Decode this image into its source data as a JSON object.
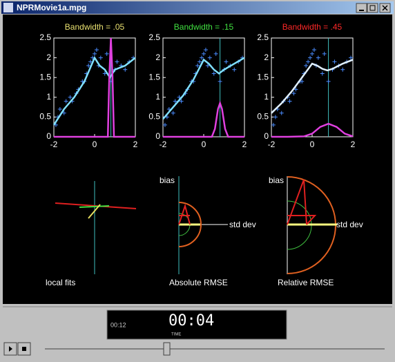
{
  "window": {
    "title": "NPRMovie1a.mpg"
  },
  "chart_data": [
    {
      "type": "scatter",
      "title": "Bandwidth = .05",
      "title_color": "#e8e070",
      "xlim": [
        -2,
        2
      ],
      "ylim": [
        0,
        2.5
      ],
      "xticks": [
        -2,
        0,
        2
      ],
      "yticks": [
        0,
        0.5,
        1,
        1.5,
        2,
        2.5
      ],
      "focus_x": 0.8,
      "points": {
        "color": "#4a8cff",
        "x": [
          -1.9,
          -1.8,
          -1.7,
          -1.5,
          -1.4,
          -1.2,
          -1.1,
          -0.9,
          -0.8,
          -0.6,
          -0.5,
          -0.4,
          -0.3,
          -0.2,
          -0.1,
          0,
          0.1,
          0.2,
          0.3,
          0.5,
          0.6,
          0.8,
          1,
          1.1,
          1.3,
          1.5,
          1.7,
          1.9
        ],
        "values": [
          0.3,
          0.5,
          0.7,
          0.6,
          0.9,
          1,
          0.9,
          1.1,
          1.2,
          1.4,
          1.4,
          1.6,
          1.8,
          1.9,
          2.0,
          2.1,
          2.2,
          1.8,
          2.0,
          1.6,
          2.1,
          1.4,
          1.7,
          1.9,
          1.8,
          1.7,
          1.9,
          2.0
        ]
      },
      "fit": {
        "color": "#80e0ff",
        "x": [
          -2,
          -1.5,
          -1,
          -0.5,
          0,
          0.25,
          0.5,
          0.75,
          1,
          1.5,
          2
        ],
        "values": [
          0.3,
          0.7,
          1.0,
          1.4,
          2.0,
          1.8,
          1.7,
          1.5,
          1.7,
          1.8,
          2.0
        ]
      },
      "kernel": {
        "color": "#e040e0",
        "x": [
          -2,
          0.65,
          0.72,
          0.8,
          0.88,
          0.95,
          2
        ],
        "values": [
          0,
          0,
          1.5,
          2.5,
          1.5,
          0,
          0
        ]
      }
    },
    {
      "type": "scatter",
      "title": "Bandwidth = .15",
      "title_color": "#40e040",
      "xlim": [
        -2,
        2
      ],
      "ylim": [
        0,
        2.5
      ],
      "xticks": [
        -2,
        0,
        2
      ],
      "yticks": [
        0,
        0.5,
        1,
        1.5,
        2,
        2.5
      ],
      "focus_x": 0.8,
      "points": {
        "color": "#4a8cff",
        "x": [
          -1.9,
          -1.8,
          -1.7,
          -1.5,
          -1.4,
          -1.2,
          -1.1,
          -0.9,
          -0.8,
          -0.6,
          -0.5,
          -0.4,
          -0.3,
          -0.2,
          -0.1,
          0,
          0.1,
          0.2,
          0.3,
          0.5,
          0.6,
          0.8,
          1,
          1.1,
          1.3,
          1.5,
          1.7,
          1.9
        ],
        "values": [
          0.3,
          0.5,
          0.7,
          0.6,
          0.9,
          1,
          0.9,
          1.1,
          1.2,
          1.4,
          1.4,
          1.6,
          1.8,
          1.9,
          2.0,
          2.1,
          2.2,
          1.8,
          2.0,
          1.6,
          2.1,
          1.4,
          1.7,
          1.9,
          1.8,
          1.7,
          1.9,
          2.0
        ]
      },
      "fit": {
        "color": "#80e0ff",
        "x": [
          -2,
          -1.5,
          -1,
          -0.5,
          0,
          0.25,
          0.5,
          0.75,
          1,
          1.5,
          2
        ],
        "values": [
          0.45,
          0.75,
          1.05,
          1.45,
          1.95,
          1.85,
          1.7,
          1.6,
          1.7,
          1.85,
          2.0
        ]
      },
      "kernel": {
        "color": "#e040e0",
        "x": [
          -2,
          0.4,
          0.55,
          0.7,
          0.8,
          0.9,
          1.05,
          1.2,
          2
        ],
        "values": [
          0,
          0,
          0.2,
          0.7,
          0.85,
          0.7,
          0.2,
          0,
          0
        ]
      }
    },
    {
      "type": "scatter",
      "title": "Bandwidth = .45",
      "title_color": "#ff2828",
      "xlim": [
        -2,
        2
      ],
      "ylim": [
        0,
        2.5
      ],
      "xticks": [
        -2,
        0,
        2
      ],
      "yticks": [
        0,
        0.5,
        1,
        1.5,
        2,
        2.5
      ],
      "focus_x": 0.8,
      "points": {
        "color": "#4a8cff",
        "x": [
          -1.9,
          -1.8,
          -1.7,
          -1.5,
          -1.4,
          -1.2,
          -1.1,
          -0.9,
          -0.8,
          -0.6,
          -0.5,
          -0.4,
          -0.3,
          -0.2,
          -0.1,
          0,
          0.1,
          0.2,
          0.3,
          0.5,
          0.6,
          0.8,
          1,
          1.1,
          1.3,
          1.5,
          1.7,
          1.9
        ],
        "values": [
          0.3,
          0.5,
          0.7,
          0.6,
          0.9,
          1,
          0.9,
          1.1,
          1.2,
          1.4,
          1.4,
          1.6,
          1.8,
          1.9,
          2.0,
          2.1,
          2.2,
          1.8,
          2.0,
          1.6,
          2.1,
          1.4,
          1.7,
          1.9,
          1.8,
          1.7,
          1.9,
          2.0
        ]
      },
      "fit": {
        "color": "#e0f0ff",
        "x": [
          -2,
          -1.5,
          -1,
          -0.5,
          0,
          0.25,
          0.5,
          0.75,
          1,
          1.5,
          2
        ],
        "values": [
          0.6,
          0.85,
          1.15,
          1.5,
          1.85,
          1.8,
          1.72,
          1.68,
          1.72,
          1.85,
          1.95
        ]
      },
      "kernel": {
        "color": "#e040e0",
        "x": [
          -2,
          -1.2,
          -0.4,
          0,
          0.4,
          0.8,
          1.2,
          1.6,
          2
        ],
        "values": [
          0,
          0,
          0.01,
          0.08,
          0.25,
          0.33,
          0.25,
          0.08,
          0.01
        ]
      }
    }
  ],
  "diagrams": {
    "local_fits": "local fits",
    "absolute": {
      "title": "Absolute RMSE",
      "y_label": "bias",
      "x_label": "std dev"
    },
    "relative": {
      "title": "Relative RMSE",
      "y_label": "bias",
      "x_label": "std dev"
    }
  },
  "player": {
    "elapsed": "00:12",
    "time": "00:04",
    "time_label": "TIME"
  }
}
